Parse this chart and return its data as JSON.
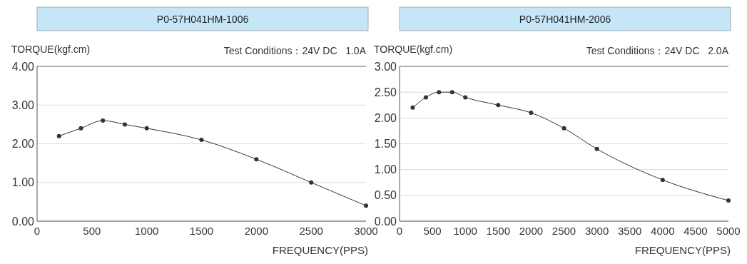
{
  "chart_data": [
    {
      "type": "line",
      "title": "P0-57H041HM-1006",
      "subtitle": "Test Conditions：24V DC   1.0A",
      "xlabel": "FREQUENCY(PPS)",
      "ylabel": "TORQUE(kgf.cm)",
      "x": [
        200,
        400,
        600,
        800,
        1000,
        1500,
        2000,
        2500,
        3000
      ],
      "series": [
        {
          "color": "#333333",
          "values": [
            2.2,
            2.4,
            2.6,
            2.5,
            2.4,
            2.1,
            1.6,
            1.0,
            0.4
          ]
        }
      ],
      "xlim": [
        0,
        3000
      ],
      "xticks": [
        0,
        500,
        1000,
        1500,
        2000,
        2500,
        3000
      ],
      "ylim": [
        0,
        4
      ],
      "yticks": [
        {
          "value": 0,
          "label": "0.00"
        },
        {
          "value": 1,
          "label": "1.00"
        },
        {
          "value": 2,
          "label": "2.00"
        },
        {
          "value": 3,
          "label": "3.00"
        },
        {
          "value": 4,
          "label": "4.00"
        }
      ],
      "grid": "y",
      "marker": "circle",
      "line_style": "solid"
    },
    {
      "type": "line",
      "title": "P0-57H041HM-2006",
      "subtitle": "Test Conditions：24V DC   2.0A",
      "xlabel": "FREQUENCY(PPS)",
      "ylabel": "TORQUE(kgf.cm)",
      "x": [
        200,
        400,
        600,
        800,
        1000,
        1500,
        2000,
        2500,
        3000,
        4000,
        5000
      ],
      "series": [
        {
          "color": "#333333",
          "values": [
            2.2,
            2.4,
            2.5,
            2.5,
            2.4,
            2.25,
            2.1,
            1.8,
            1.4,
            0.8,
            0.4
          ]
        }
      ],
      "xlim": [
        0,
        5000
      ],
      "xticks": [
        0,
        500,
        1000,
        1500,
        2000,
        2500,
        3000,
        3500,
        4000,
        4500,
        5000
      ],
      "ylim": [
        0,
        3
      ],
      "yticks": [
        {
          "value": 0,
          "label": "0.00"
        },
        {
          "value": 0.5,
          "label": "0.50"
        },
        {
          "value": 1,
          "label": "1.00"
        },
        {
          "value": 1.5,
          "label": "1.50"
        },
        {
          "value": 2,
          "label": "2.00"
        },
        {
          "value": 2.5,
          "label": "2.50"
        },
        {
          "value": 3,
          "label": "3.00"
        }
      ],
      "grid": "y",
      "marker": "circle",
      "line_style": "solid"
    }
  ]
}
